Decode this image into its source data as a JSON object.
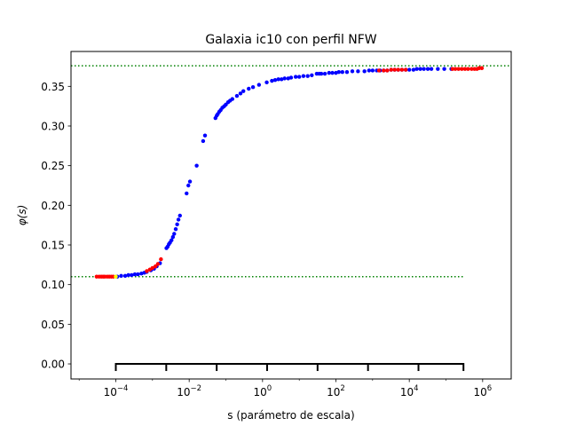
{
  "chart_data": {
    "type": "scatter",
    "title": "Galaxia ic10 con perfil NFW",
    "xlabel": "s (parámetro de escala)",
    "ylabel": "φ(s)",
    "x_scale": "log",
    "xlim": [
      6e-06,
      6000000
    ],
    "ylim": [
      -0.019,
      0.394
    ],
    "x_ticks": [
      {
        "value": 0.0001,
        "base": "10",
        "exp": "−4"
      },
      {
        "value": 0.01,
        "base": "10",
        "exp": "−2"
      },
      {
        "value": 1,
        "base": "10",
        "exp": "0"
      },
      {
        "value": 100,
        "base": "10",
        "exp": "2"
      },
      {
        "value": 10000,
        "base": "10",
        "exp": "4"
      },
      {
        "value": 1000000,
        "base": "10",
        "exp": "6"
      }
    ],
    "y_ticks": [
      "0.00",
      "0.05",
      "0.10",
      "0.15",
      "0.20",
      "0.25",
      "0.30",
      "0.35"
    ],
    "y_tick_values": [
      0,
      0.05,
      0.1,
      0.15,
      0.2,
      0.25,
      0.3,
      0.35
    ],
    "grid": false,
    "reference_lines": [
      {
        "y": 0.376,
        "x_from": 6e-06,
        "x_to": 6000000,
        "color": "#008000",
        "style": "dotted"
      },
      {
        "y": 0.11,
        "x_from": 6e-06,
        "x_to": 300000,
        "color": "#008000",
        "style": "dotted"
      }
    ],
    "bracket": {
      "y": 0.0,
      "x_from": 0.0001,
      "x_to": 300000,
      "tick_x": [
        0.0001,
        0.00237,
        0.0562,
        1.33,
        31.6,
        750,
        17800,
        300000
      ],
      "color": "#000000"
    },
    "series": [
      {
        "color": "#0000ff",
        "points": [
          [
            0.00011,
            0.11
          ],
          [
            0.00014,
            0.111
          ],
          [
            0.00018,
            0.111
          ],
          [
            0.00022,
            0.112
          ],
          [
            0.00027,
            0.112
          ],
          [
            0.00033,
            0.113
          ],
          [
            0.0004,
            0.113
          ],
          [
            0.0005,
            0.114
          ],
          [
            0.0006,
            0.115
          ],
          [
            0.0007,
            0.116
          ],
          [
            0.0009,
            0.118
          ],
          [
            0.0011,
            0.12
          ],
          [
            0.0013,
            0.123
          ],
          [
            0.0016,
            0.127
          ],
          [
            0.0024,
            0.146
          ],
          [
            0.0026,
            0.148
          ],
          [
            0.0028,
            0.151
          ],
          [
            0.003,
            0.153
          ],
          [
            0.0033,
            0.156
          ],
          [
            0.0036,
            0.16
          ],
          [
            0.0039,
            0.164
          ],
          [
            0.0043,
            0.17
          ],
          [
            0.0047,
            0.176
          ],
          [
            0.0051,
            0.182
          ],
          [
            0.0056,
            0.187
          ],
          [
            0.0085,
            0.215
          ],
          [
            0.0095,
            0.225
          ],
          [
            0.0105,
            0.23
          ],
          [
            0.016,
            0.25
          ],
          [
            0.024,
            0.281
          ],
          [
            0.027,
            0.288
          ],
          [
            0.052,
            0.31
          ],
          [
            0.056,
            0.313
          ],
          [
            0.06,
            0.315
          ],
          [
            0.066,
            0.318
          ],
          [
            0.072,
            0.32
          ],
          [
            0.08,
            0.323
          ],
          [
            0.09,
            0.325
          ],
          [
            0.1,
            0.327
          ],
          [
            0.115,
            0.33
          ],
          [
            0.13,
            0.332
          ],
          [
            0.15,
            0.334
          ],
          [
            0.2,
            0.338
          ],
          [
            0.25,
            0.341
          ],
          [
            0.3,
            0.344
          ],
          [
            0.42,
            0.347
          ],
          [
            0.55,
            0.349
          ],
          [
            0.8,
            0.352
          ],
          [
            1.3,
            0.355
          ],
          [
            1.8,
            0.357
          ],
          [
            2.2,
            0.358
          ],
          [
            2.7,
            0.359
          ],
          [
            3.3,
            0.359
          ],
          [
            4,
            0.36
          ],
          [
            5,
            0.36
          ],
          [
            6,
            0.361
          ],
          [
            8,
            0.362
          ],
          [
            10,
            0.362
          ],
          [
            13,
            0.363
          ],
          [
            17,
            0.363
          ],
          [
            22,
            0.364
          ],
          [
            30,
            0.366
          ],
          [
            35,
            0.366
          ],
          [
            40,
            0.366
          ],
          [
            50,
            0.366
          ],
          [
            65,
            0.367
          ],
          [
            80,
            0.367
          ],
          [
            100,
            0.367
          ],
          [
            120,
            0.368
          ],
          [
            150,
            0.368
          ],
          [
            200,
            0.368
          ],
          [
            280,
            0.369
          ],
          [
            400,
            0.369
          ],
          [
            600,
            0.369
          ],
          [
            800,
            0.37
          ],
          [
            1000,
            0.37
          ],
          [
            1300,
            0.37
          ],
          [
            1600,
            0.37
          ],
          [
            2000,
            0.37
          ],
          [
            2500,
            0.37
          ],
          [
            3200,
            0.371
          ],
          [
            4000,
            0.371
          ],
          [
            5000,
            0.371
          ],
          [
            6300,
            0.371
          ],
          [
            8000,
            0.371
          ],
          [
            10000,
            0.371
          ],
          [
            13000,
            0.371
          ],
          [
            16000,
            0.372
          ],
          [
            20000,
            0.372
          ],
          [
            25000,
            0.372
          ],
          [
            32000,
            0.372
          ],
          [
            40000,
            0.372
          ],
          [
            60000,
            0.372
          ],
          [
            90000,
            0.372
          ],
          [
            140000,
            0.372
          ]
        ]
      },
      {
        "color": "#ff0000",
        "points": [
          [
            3e-05,
            0.11
          ],
          [
            3.5e-05,
            0.11
          ],
          [
            4e-05,
            0.11
          ],
          [
            4.5e-05,
            0.11
          ],
          [
            5e-05,
            0.11
          ],
          [
            5.8e-05,
            0.11
          ],
          [
            6.6e-05,
            0.11
          ],
          [
            7.5e-05,
            0.11
          ],
          [
            8.5e-05,
            0.11
          ],
          [
            0.0007,
            0.117
          ],
          [
            0.00085,
            0.119
          ],
          [
            0.001,
            0.121
          ],
          [
            0.0012,
            0.123
          ],
          [
            0.0014,
            0.126
          ],
          [
            0.0017,
            0.132
          ],
          [
            1500,
            0.37
          ],
          [
            2000,
            0.37
          ],
          [
            2500,
            0.37
          ],
          [
            3200,
            0.371
          ],
          [
            4000,
            0.371
          ],
          [
            5000,
            0.371
          ],
          [
            6300,
            0.371
          ],
          [
            8000,
            0.371
          ],
          [
            150000,
            0.372
          ],
          [
            180000,
            0.372
          ],
          [
            220000,
            0.372
          ],
          [
            270000,
            0.372
          ],
          [
            330000,
            0.372
          ],
          [
            400000,
            0.372
          ],
          [
            500000,
            0.372
          ],
          [
            600000,
            0.372
          ],
          [
            700000,
            0.372
          ],
          [
            800000,
            0.373
          ],
          [
            950000,
            0.373
          ]
        ]
      },
      {
        "color": "#ffff00",
        "points": [
          [
            0.0001,
            0.11
          ]
        ]
      }
    ]
  }
}
